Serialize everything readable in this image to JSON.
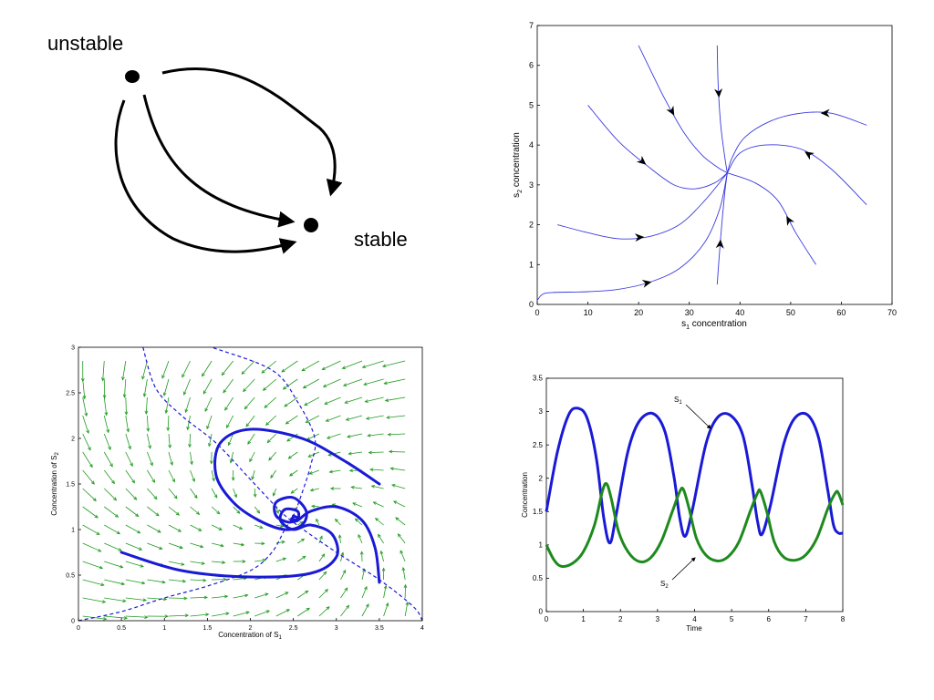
{
  "diagram": {
    "unstable_label": "unstable",
    "stable_label": "stable",
    "unstable_node": "unstable-point",
    "stable_node": "stable-point"
  },
  "chart_data": [
    {
      "type": "line",
      "id": "phase-top",
      "xlabel": "s",
      "xlabel_sub": "1",
      "xlabel_rest": " concentration",
      "ylabel": "s",
      "ylabel_sub": "2",
      "ylabel_rest": " concentration",
      "xlim": [
        0,
        70
      ],
      "ylim": [
        0,
        7
      ],
      "xticks": [
        0,
        10,
        20,
        30,
        40,
        50,
        60,
        70
      ],
      "yticks": [
        0,
        1,
        2,
        3,
        4,
        5,
        6,
        7
      ],
      "color": "#3a3adf",
      "fixed_point": [
        37.5,
        3.3
      ],
      "series": [
        {
          "points": [
            [
              0,
              0.1
            ],
            [
              1,
              0.25
            ],
            [
              3,
              0.3
            ],
            [
              10,
              0.32
            ],
            [
              16,
              0.38
            ],
            [
              22,
              0.55
            ],
            [
              28,
              0.9
            ],
            [
              33,
              1.55
            ],
            [
              36,
              2.4
            ],
            [
              37.5,
              3.3
            ]
          ],
          "arrow_at": 0.55
        },
        {
          "points": [
            [
              4,
              2.0
            ],
            [
              10,
              1.8
            ],
            [
              16,
              1.65
            ],
            [
              22,
              1.7
            ],
            [
              28,
              2.0
            ],
            [
              33,
              2.6
            ],
            [
              37.5,
              3.3
            ]
          ],
          "arrow_at": 0.45
        },
        {
          "points": [
            [
              10,
              5.0
            ],
            [
              16,
              4.1
            ],
            [
              22,
              3.45
            ],
            [
              27,
              3.0
            ],
            [
              31,
              2.9
            ],
            [
              35,
              3.05
            ],
            [
              37.5,
              3.3
            ]
          ],
          "arrow_at": 0.3
        },
        {
          "points": [
            [
              20,
              6.5
            ],
            [
              25,
              5.2
            ],
            [
              29,
              4.3
            ],
            [
              32.5,
              3.75
            ],
            [
              35.5,
              3.45
            ],
            [
              37.5,
              3.3
            ]
          ],
          "arrow_at": 0.28
        },
        {
          "points": [
            [
              35.5,
              6.5
            ],
            [
              35.7,
              5.5
            ],
            [
              36.2,
              4.5
            ],
            [
              37,
              3.7
            ],
            [
              37.5,
              3.3
            ]
          ],
          "arrow_at": 0.3
        },
        {
          "points": [
            [
              35.5,
              0.5
            ],
            [
              35.9,
              1.2
            ],
            [
              36.4,
              2.0
            ],
            [
              37,
              2.8
            ],
            [
              37.5,
              3.3
            ]
          ],
          "arrow_at": 0.35
        },
        {
          "points": [
            [
              55,
              1.0
            ],
            [
              51,
              1.8
            ],
            [
              47.5,
              2.6
            ],
            [
              43,
              3.05
            ],
            [
              37.5,
              3.3
            ]
          ],
          "arrow_at": 0.35
        },
        {
          "points": [
            [
              65,
              2.5
            ],
            [
              58,
              3.4
            ],
            [
              52,
              3.9
            ],
            [
              45,
              4.0
            ],
            [
              40,
              3.8
            ],
            [
              37.5,
              3.3
            ]
          ],
          "arrow_at": 0.35
        },
        {
          "points": [
            [
              65,
              4.5
            ],
            [
              58,
              4.8
            ],
            [
              52,
              4.8
            ],
            [
              46,
              4.6
            ],
            [
              41,
              4.2
            ],
            [
              38.5,
              3.7
            ],
            [
              37.5,
              3.3
            ]
          ],
          "arrow_at": 0.2
        }
      ]
    },
    {
      "type": "line",
      "id": "phase-bottom",
      "xlabel": "Concentration of S",
      "xlabel_sub": "1",
      "ylabel": "Concentration of S",
      "ylabel_sub": "2",
      "xlim": [
        0,
        4
      ],
      "ylim": [
        0,
        3
      ],
      "xticks": [
        0,
        0.5,
        1,
        1.5,
        2,
        2.5,
        3,
        3.5,
        4
      ],
      "yticks": [
        0,
        0.5,
        1,
        1.5,
        2,
        2.5,
        3
      ],
      "traj_color": "#1a1ad6",
      "field_color": "#1e9a1e",
      "nullcline1": [
        [
          0,
          0
        ],
        [
          0.5,
          0.1
        ],
        [
          1,
          0.25
        ],
        [
          1.5,
          0.38
        ],
        [
          2,
          0.55
        ],
        [
          2.25,
          0.75
        ],
        [
          2.4,
          1.0
        ],
        [
          2.5,
          1.15
        ],
        [
          2.6,
          1.4
        ],
        [
          2.7,
          1.7
        ],
        [
          2.75,
          2.0
        ],
        [
          2.55,
          2.4
        ],
        [
          2.25,
          2.75
        ],
        [
          1.55,
          3.0
        ]
      ],
      "nullcline2": [
        [
          0.75,
          3.0
        ],
        [
          0.9,
          2.55
        ],
        [
          1.2,
          2.25
        ],
        [
          1.6,
          1.95
        ],
        [
          2.0,
          1.55
        ],
        [
          2.3,
          1.25
        ],
        [
          2.5,
          1.08
        ],
        [
          3.0,
          0.75
        ],
        [
          3.5,
          0.45
        ],
        [
          3.9,
          0.15
        ],
        [
          4.0,
          0.0
        ]
      ],
      "trajectories": [
        [
          [
            3.5,
            1.5
          ],
          [
            3.1,
            1.75
          ],
          [
            2.6,
            2.0
          ],
          [
            2.0,
            2.1
          ],
          [
            1.65,
            1.95
          ],
          [
            1.6,
            1.6
          ],
          [
            1.8,
            1.3
          ],
          [
            2.1,
            1.1
          ],
          [
            2.4,
            1.0
          ],
          [
            2.6,
            1.05
          ],
          [
            2.65,
            1.2
          ],
          [
            2.5,
            1.35
          ],
          [
            2.3,
            1.3
          ],
          [
            2.3,
            1.15
          ],
          [
            2.45,
            1.08
          ],
          [
            2.55,
            1.12
          ],
          [
            2.5,
            1.15
          ]
        ],
        [
          [
            0.5,
            0.75
          ],
          [
            1.2,
            0.55
          ],
          [
            2.0,
            0.48
          ],
          [
            2.7,
            0.52
          ],
          [
            3.0,
            0.7
          ],
          [
            2.95,
            0.95
          ],
          [
            2.7,
            1.05
          ],
          [
            2.5,
            1.0
          ],
          [
            2.35,
            1.1
          ],
          [
            2.4,
            1.22
          ],
          [
            2.55,
            1.2
          ],
          [
            2.55,
            1.1
          ],
          [
            2.48,
            1.12
          ]
        ],
        [
          [
            3.5,
            0.42
          ],
          [
            3.45,
            0.8
          ],
          [
            3.3,
            1.1
          ],
          [
            3.0,
            1.25
          ],
          [
            2.7,
            1.2
          ],
          [
            2.55,
            1.1
          ],
          [
            2.48,
            1.1
          ],
          [
            2.5,
            1.14
          ]
        ]
      ]
    },
    {
      "type": "line",
      "id": "time-course",
      "xlabel": "Time",
      "ylabel": "Concentration",
      "xlim": [
        0,
        8
      ],
      "ylim": [
        0,
        3.5
      ],
      "xticks": [
        0,
        1,
        2,
        3,
        4,
        5,
        6,
        7,
        8
      ],
      "yticks": [
        0,
        0.5,
        1,
        1.5,
        2,
        2.5,
        3,
        3.5
      ],
      "series": [
        {
          "name": "S",
          "sub": "1",
          "color": "#1a1ad6",
          "points": [
            [
              0,
              1.5
            ],
            [
              0.3,
              2.4
            ],
            [
              0.6,
              2.95
            ],
            [
              0.85,
              3.05
            ],
            [
              1.1,
              2.9
            ],
            [
              1.35,
              2.3
            ],
            [
              1.55,
              1.4
            ],
            [
              1.72,
              1.03
            ],
            [
              1.9,
              1.5
            ],
            [
              2.2,
              2.4
            ],
            [
              2.5,
              2.85
            ],
            [
              2.88,
              2.97
            ],
            [
              3.2,
              2.7
            ],
            [
              3.45,
              2.0
            ],
            [
              3.6,
              1.4
            ],
            [
              3.75,
              1.13
            ],
            [
              3.95,
              1.55
            ],
            [
              4.3,
              2.5
            ],
            [
              4.6,
              2.9
            ],
            [
              4.95,
              2.95
            ],
            [
              5.3,
              2.65
            ],
            [
              5.55,
              1.9
            ],
            [
              5.7,
              1.35
            ],
            [
              5.82,
              1.16
            ],
            [
              6.05,
              1.6
            ],
            [
              6.4,
              2.5
            ],
            [
              6.7,
              2.9
            ],
            [
              7.05,
              2.95
            ],
            [
              7.35,
              2.6
            ],
            [
              7.6,
              1.8
            ],
            [
              7.75,
              1.3
            ],
            [
              7.88,
              1.18
            ],
            [
              8.0,
              1.18
            ]
          ]
        },
        {
          "name": "S",
          "sub": "2",
          "color": "#1e8a1e",
          "points": [
            [
              0,
              1.0
            ],
            [
              0.2,
              0.78
            ],
            [
              0.4,
              0.68
            ],
            [
              0.7,
              0.72
            ],
            [
              1.0,
              0.9
            ],
            [
              1.3,
              1.3
            ],
            [
              1.5,
              1.78
            ],
            [
              1.62,
              1.92
            ],
            [
              1.75,
              1.7
            ],
            [
              1.95,
              1.2
            ],
            [
              2.2,
              0.9
            ],
            [
              2.5,
              0.75
            ],
            [
              2.8,
              0.8
            ],
            [
              3.1,
              1.05
            ],
            [
              3.4,
              1.5
            ],
            [
              3.6,
              1.8
            ],
            [
              3.7,
              1.83
            ],
            [
              3.85,
              1.55
            ],
            [
              4.05,
              1.1
            ],
            [
              4.3,
              0.85
            ],
            [
              4.6,
              0.76
            ],
            [
              4.9,
              0.82
            ],
            [
              5.2,
              1.05
            ],
            [
              5.5,
              1.5
            ],
            [
              5.7,
              1.78
            ],
            [
              5.78,
              1.8
            ],
            [
              5.95,
              1.5
            ],
            [
              6.15,
              1.05
            ],
            [
              6.4,
              0.82
            ],
            [
              6.7,
              0.77
            ],
            [
              7.0,
              0.85
            ],
            [
              7.3,
              1.1
            ],
            [
              7.6,
              1.55
            ],
            [
              7.8,
              1.78
            ],
            [
              7.88,
              1.78
            ],
            [
              8.0,
              1.6
            ]
          ]
        }
      ]
    }
  ]
}
